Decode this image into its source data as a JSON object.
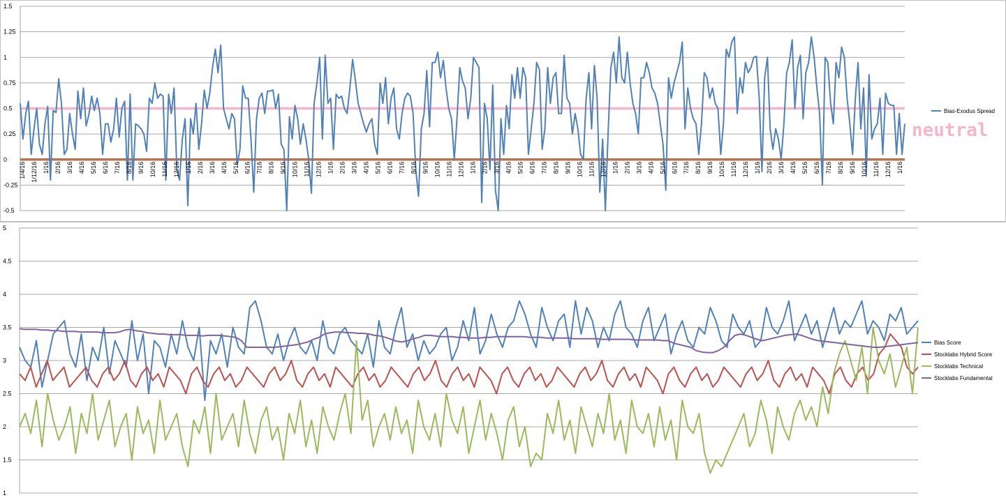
{
  "chart_data": [
    {
      "type": "line",
      "title": "",
      "xlabel": "",
      "ylabel": "",
      "ylim": [
        -0.5,
        1.5
      ],
      "yticks": [
        "-0.5",
        "-0.25",
        "0",
        "0.25",
        "0.5",
        "0.75",
        "1",
        "1.25",
        "1.5"
      ],
      "ytick_values": [
        -0.5,
        -0.25,
        0,
        0.25,
        0.5,
        0.75,
        1,
        1.25,
        1.5
      ],
      "x_labels": [
        "1/4/16",
        "1/12/16",
        "1/16",
        "2/16",
        "3/16",
        "4/16",
        "5/16",
        "6/16",
        "7/16",
        "8/16",
        "9/16",
        "10/16",
        "11/16",
        "12/16",
        "1/16",
        "2/16",
        "3/16",
        "4/16",
        "5/16",
        "6/16",
        "7/16",
        "8/16",
        "9/16",
        "10/16",
        "11/16",
        "12/16",
        "1/16",
        "2/16",
        "3/16",
        "4/16",
        "5/16",
        "6/16",
        "7/16",
        "8/16",
        "9/16",
        "10/16",
        "11/16",
        "12/16",
        "1/16",
        "2/16",
        "3/16",
        "4/16",
        "5/16",
        "6/16",
        "7/16",
        "8/16",
        "9/16",
        "10/16",
        "11/16",
        "12/16",
        "1/16",
        "2/16",
        "3/16",
        "4/16",
        "5/16",
        "6/16",
        "7/16",
        "8/16",
        "9/16",
        "10/16",
        "11/16",
        "12/16",
        "1/16",
        "2/16",
        "3/16",
        "4/16",
        "5/16",
        "6/16",
        "7/16",
        "8/16",
        "9/16",
        "10/16",
        "11/16",
        "12/16",
        "1/16"
      ],
      "grid": true,
      "legend": "right",
      "annotation": "neutral",
      "reference_lines": [
        {
          "value": 0.5,
          "color": "#f4b6c8"
        },
        {
          "value": 0,
          "color": "#c0704a"
        }
      ],
      "series": [
        {
          "name": "Bias-Exodus Spread",
          "color": "#4f81bd",
          "values": [
            0.55,
            0.2,
            0.45,
            0.57,
            0.05,
            0.3,
            0.5,
            0.15,
            0.05,
            0.35,
            0.52,
            -0.2,
            0.48,
            0.46,
            0.79,
            0.55,
            0.05,
            0.1,
            0.45,
            0.25,
            0.1,
            0.67,
            0.4,
            0.7,
            0.33,
            0.44,
            0.62,
            0.48,
            0.6,
            0.45,
            0.05,
            0.35,
            0.35,
            0.17,
            0.3,
            0.6,
            0.22,
            0.5,
            0.57,
            -0.2,
            0.64,
            -0.2,
            0.35,
            0.33,
            0.3,
            0.25,
            0.08,
            0.6,
            0.55,
            0.75,
            0.6,
            0.64,
            0.62,
            -0.2,
            0.64,
            0.45,
            0.7,
            -0.1,
            -0.2,
            0.2,
            0.4,
            -0.45,
            0.4,
            0.25,
            0.55,
            0.1,
            0.35,
            0.68,
            0.5,
            0.65,
            0.9,
            1.08,
            0.85,
            1.12,
            0.5,
            0.4,
            0.3,
            0.45,
            0.4,
            -0.05,
            0.1,
            0.72,
            0.6,
            0.6,
            0.2,
            -0.32,
            0.4,
            0.6,
            0.65,
            0.45,
            0.67,
            0.67,
            0.68,
            0.5,
            0.64,
            0.15,
            0.1,
            -0.5,
            0.42,
            0.2,
            0.53,
            0.4,
            0.15,
            0.35,
            0.2,
            0.0,
            -0.33,
            0.55,
            0.75,
            1.0,
            0.2,
            1.02,
            0.55,
            0.6,
            0.1,
            0.64,
            0.6,
            0.62,
            0.5,
            0.45,
            0.7,
            0.98,
            0.78,
            0.55,
            0.45,
            0.35,
            0.27,
            0.35,
            0.4,
            0.15,
            0.05,
            0.75,
            0.55,
            0.8,
            0.35,
            0.6,
            0.7,
            0.3,
            0.2,
            0.45,
            0.6,
            0.65,
            0.62,
            0.45,
            -0.1,
            -0.36,
            0.3,
            0.45,
            0.87,
            0.32,
            0.95,
            0.95,
            1.05,
            0.8,
            0.97,
            0.7,
            0.5,
            0.4,
            0.0,
            0.4,
            0.9,
            0.77,
            0.7,
            0.4,
            0.6,
            1.0,
            0.95,
            0.9,
            -0.42,
            0.55,
            0.4,
            -0.1,
            0.73,
            -0.3,
            -0.5,
            0.4,
            0.05,
            0.53,
            0.3,
            0.83,
            0.6,
            0.9,
            0.6,
            0.9,
            0.8,
            0.05,
            0.3,
            0.55,
            0.95,
            0.88,
            0.1,
            0.3,
            0.9,
            0.55,
            0.8,
            0.85,
            0.45,
            0.45,
            1.02,
            0.6,
            0.55,
            0.25,
            0.45,
            0.3,
            0.05,
            0.0,
            0.6,
            0.85,
            0.3,
            0.92,
            0.6,
            -0.32,
            0.2,
            -0.5,
            0.25,
            0.9,
            1.05,
            0.75,
            1.2,
            0.8,
            0.75,
            1.05,
            0.75,
            0.55,
            0.45,
            0.25,
            0.8,
            0.8,
            0.95,
            0.85,
            0.7,
            0.65,
            0.55,
            0.35,
            0.15,
            -0.3,
            0.8,
            0.6,
            0.75,
            0.85,
            0.95,
            1.15,
            0.3,
            0.7,
            0.5,
            0.4,
            0.35,
            0.05,
            0.35,
            0.85,
            0.8,
            0.6,
            0.7,
            0.55,
            0.5,
            0.05,
            0.35,
            1.08,
            1.0,
            1.15,
            1.2,
            0.45,
            0.8,
            0.65,
            0.95,
            0.85,
            0.9,
            1.0,
            1.01,
            0.6,
            -0.12,
            0.8,
            1.0,
            0.3,
            0.1,
            0.3,
            0.2,
            0.0,
            0.35,
            0.85,
            0.95,
            1.17,
            0.5,
            0.9,
            1.02,
            0.4,
            0.85,
            0.95,
            1.2,
            1.0,
            0.7,
            0.45,
            -0.25,
            1.0,
            0.95,
            0.55,
            0.35,
            0.95,
            0.8,
            1.1,
            1.0,
            0.6,
            0.35,
            0.05,
            0.6,
            0.95,
            0.3,
            0.7,
            -0.15,
            0.83,
            0.2,
            0.3,
            0.35,
            0.6,
            0.05,
            0.65,
            0.55,
            0.53,
            0.53,
            0.05,
            0.45,
            0.05,
            0.35
          ]
        }
      ]
    },
    {
      "type": "line",
      "title": "",
      "xlabel": "",
      "ylabel": "",
      "ylim": [
        1,
        5
      ],
      "yticks": [
        "1",
        "1.5",
        "2",
        "2.5",
        "3",
        "3.5",
        "4",
        "4.5",
        "5"
      ],
      "ytick_values": [
        1,
        1.5,
        2,
        2.5,
        3,
        3.5,
        4,
        4.5,
        5
      ],
      "grid": true,
      "legend": "right",
      "series": [
        {
          "name": "Bias Score",
          "color": "#4f81bd",
          "values": [
            3.2,
            3.0,
            2.9,
            3.3,
            2.6,
            3.0,
            3.4,
            3.5,
            3.6,
            3.1,
            2.9,
            3.4,
            2.7,
            3.2,
            3.0,
            3.5,
            2.8,
            3.3,
            3.1,
            2.9,
            3.6,
            3.0,
            3.4,
            2.5,
            3.3,
            3.2,
            2.9,
            3.4,
            3.1,
            3.6,
            3.2,
            3.0,
            3.5,
            2.4,
            3.3,
            3.1,
            3.4,
            2.9,
            3.5,
            3.2,
            3.1,
            3.8,
            3.9,
            3.6,
            3.2,
            3.1,
            3.4,
            3.0,
            3.3,
            3.5,
            3.2,
            3.1,
            3.3,
            3.0,
            3.6,
            3.2,
            3.1,
            3.4,
            3.5,
            3.3,
            3.2,
            3.1,
            3.4,
            2.9,
            3.6,
            3.2,
            3.1,
            3.5,
            3.8,
            3.2,
            3.4,
            3.0,
            3.3,
            3.1,
            3.2,
            3.4,
            3.5,
            3.0,
            3.2,
            3.6,
            3.3,
            3.8,
            3.1,
            3.3,
            3.7,
            3.4,
            3.2,
            3.5,
            3.6,
            3.9,
            3.7,
            3.4,
            3.2,
            3.8,
            3.5,
            3.3,
            3.6,
            3.7,
            3.2,
            3.9,
            3.4,
            3.8,
            3.6,
            3.2,
            3.5,
            3.3,
            3.7,
            3.9,
            3.5,
            3.4,
            3.2,
            3.6,
            3.8,
            3.3,
            3.5,
            3.7,
            3.1,
            3.4,
            3.6,
            3.3,
            3.2,
            3.5,
            3.4,
            3.8,
            3.6,
            3.3,
            3.2,
            3.7,
            3.5,
            3.4,
            3.6,
            3.2,
            3.3,
            3.8,
            3.5,
            3.4,
            3.6,
            3.9,
            3.3,
            3.5,
            3.7,
            3.4,
            3.6,
            3.2,
            3.5,
            3.8,
            3.4,
            3.6,
            3.5,
            3.7,
            3.9,
            3.4,
            3.6,
            3.5,
            3.3,
            3.7,
            3.6,
            3.8,
            3.4,
            3.5,
            3.6
          ]
        },
        {
          "name": "Stocklabs Hybrid Score",
          "color": "#c0504d",
          "values": [
            2.8,
            2.7,
            2.9,
            2.6,
            2.8,
            3.0,
            2.7,
            2.8,
            2.9,
            2.6,
            2.7,
            2.8,
            2.9,
            2.7,
            2.6,
            2.8,
            2.9,
            2.7,
            2.8,
            3.0,
            2.7,
            2.6,
            2.8,
            2.9,
            2.7,
            2.8,
            2.6,
            2.9,
            2.8,
            2.7,
            2.5,
            2.8,
            2.9,
            2.7,
            2.6,
            2.8,
            2.9,
            2.7,
            2.8,
            2.6,
            2.7,
            2.9,
            2.8,
            2.7,
            2.6,
            2.8,
            2.9,
            2.7,
            2.8,
            3.0,
            2.7,
            2.6,
            2.8,
            2.9,
            2.7,
            2.8,
            2.6,
            2.9,
            2.8,
            2.7,
            2.6,
            2.8,
            2.9,
            2.7,
            2.8,
            2.6,
            2.7,
            2.9,
            2.8,
            2.7,
            2.6,
            2.8,
            2.9,
            2.7,
            2.8,
            3.0,
            2.7,
            2.6,
            2.8,
            2.9,
            2.7,
            2.8,
            2.6,
            2.9,
            2.8,
            2.7,
            2.5,
            2.8,
            2.9,
            2.7,
            2.6,
            2.8,
            2.9,
            2.7,
            2.8,
            2.6,
            2.7,
            2.9,
            2.8,
            2.7,
            2.6,
            2.8,
            2.9,
            2.7,
            2.8,
            3.0,
            2.7,
            2.6,
            2.8,
            2.9,
            2.7,
            2.8,
            2.6,
            2.9,
            2.8,
            2.7,
            2.5,
            2.8,
            2.9,
            2.7,
            2.6,
            2.8,
            2.9,
            2.7,
            2.8,
            2.6,
            2.7,
            2.9,
            2.8,
            2.7,
            2.6,
            2.8,
            2.9,
            2.7,
            2.8,
            3.0,
            2.7,
            2.6,
            2.8,
            2.9,
            2.7,
            2.8,
            2.6,
            2.9,
            2.8,
            2.7,
            2.5,
            2.8,
            2.9,
            2.7,
            2.6,
            2.8,
            2.9,
            2.7,
            2.8,
            3.1,
            3.2,
            3.4,
            3.3,
            3.2,
            2.9,
            2.8,
            2.9
          ]
        },
        {
          "name": "Stocklabs Technical",
          "color": "#9bbb59",
          "values": [
            2.0,
            2.2,
            1.9,
            2.4,
            1.7,
            2.5,
            2.1,
            1.8,
            2.0,
            2.3,
            1.6,
            2.2,
            1.9,
            2.5,
            1.8,
            2.1,
            2.4,
            1.7,
            2.0,
            2.2,
            1.5,
            2.3,
            1.9,
            2.1,
            1.6,
            2.4,
            1.8,
            2.0,
            2.2,
            1.7,
            1.4,
            2.1,
            1.9,
            2.3,
            1.6,
            2.5,
            1.8,
            2.0,
            2.2,
            1.7,
            2.4,
            1.9,
            1.6,
            2.1,
            2.3,
            1.8,
            2.0,
            1.5,
            2.2,
            1.9,
            2.4,
            1.7,
            2.1,
            1.6,
            2.3,
            2.0,
            1.8,
            2.2,
            2.5,
            1.9,
            3.3,
            2.1,
            2.4,
            1.7,
            2.0,
            2.2,
            1.8,
            2.3,
            1.9,
            2.1,
            1.6,
            2.4,
            2.0,
            1.8,
            2.2,
            1.7,
            2.5,
            2.1,
            1.9,
            2.3,
            1.6,
            2.0,
            2.4,
            1.8,
            2.2,
            1.9,
            1.5,
            2.1,
            2.3,
            1.7,
            2.0,
            1.4,
            1.6,
            1.5,
            2.2,
            1.9,
            2.4,
            1.8,
            2.1,
            1.6,
            2.3,
            2.0,
            1.7,
            2.2,
            1.9,
            2.5,
            1.8,
            2.1,
            1.6,
            2.4,
            2.0,
            1.9,
            2.2,
            1.7,
            2.3,
            1.8,
            2.1,
            1.5,
            2.4,
            2.0,
            1.9,
            2.2,
            1.6,
            1.3,
            1.5,
            1.4,
            1.6,
            1.8,
            2.0,
            2.2,
            1.7,
            1.9,
            2.4,
            2.1,
            1.6,
            2.3,
            2.0,
            1.8,
            2.2,
            2.4,
            2.1,
            2.3,
            2.0,
            2.6,
            2.2,
            2.8,
            3.1,
            3.3,
            3.0,
            2.7,
            3.2,
            2.5,
            3.5,
            3.0,
            2.8,
            3.1,
            2.6,
            2.9,
            3.2,
            2.5,
            3.5
          ]
        },
        {
          "name": "Stocklabs Fundamental",
          "color": "#8064a2",
          "values": [
            3.48,
            3.47,
            3.47,
            3.47,
            3.46,
            3.46,
            3.45,
            3.45,
            3.44,
            3.44,
            3.44,
            3.43,
            3.43,
            3.43,
            3.43,
            3.42,
            3.42,
            3.42,
            3.43,
            3.46,
            3.47,
            3.45,
            3.44,
            3.42,
            3.41,
            3.4,
            3.4,
            3.39,
            3.39,
            3.39,
            3.38,
            3.38,
            3.38,
            3.37,
            3.38,
            3.38,
            3.38,
            3.37,
            3.36,
            3.35,
            3.3,
            3.2,
            3.2,
            3.2,
            3.2,
            3.2,
            3.2,
            3.21,
            3.22,
            3.23,
            3.24,
            3.26,
            3.28,
            3.32,
            3.35,
            3.4,
            3.42,
            3.43,
            3.43,
            3.42,
            3.42,
            3.41,
            3.41,
            3.4,
            3.38,
            3.37,
            3.35,
            3.32,
            3.29,
            3.28,
            3.3,
            3.33,
            3.35,
            3.38,
            3.38,
            3.37,
            3.36,
            3.36,
            3.36,
            3.35,
            3.35,
            3.34,
            3.34,
            3.34,
            3.35,
            3.35,
            3.36,
            3.36,
            3.36,
            3.36,
            3.36,
            3.36,
            3.35,
            3.35,
            3.35,
            3.34,
            3.34,
            3.34,
            3.34,
            3.34,
            3.33,
            3.33,
            3.33,
            3.33,
            3.33,
            3.32,
            3.32,
            3.32,
            3.32,
            3.32,
            3.32,
            3.31,
            3.31,
            3.31,
            3.31,
            3.31,
            3.3,
            3.3,
            3.26,
            3.24,
            3.22,
            3.2,
            3.15,
            3.13,
            3.12,
            3.12,
            3.15,
            3.2,
            3.3,
            3.38,
            3.4,
            3.38,
            3.35,
            3.32,
            3.3,
            3.32,
            3.34,
            3.36,
            3.38,
            3.39,
            3.4,
            3.38,
            3.35,
            3.32,
            3.3,
            3.29,
            3.28,
            3.27,
            3.26,
            3.25,
            3.24,
            3.23,
            3.22,
            3.21,
            3.2,
            3.2,
            3.21,
            3.22,
            3.23,
            3.24,
            3.25,
            3.26,
            3.27
          ]
        }
      ]
    }
  ]
}
